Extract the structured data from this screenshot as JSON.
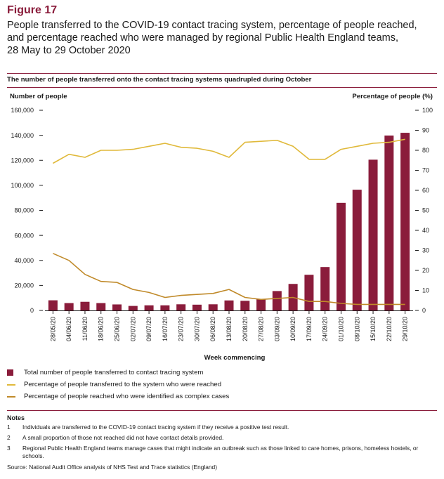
{
  "figure_label": "Figure 17",
  "title_lines": [
    "People transferred to the COVID-19 contact tracing system, percentage of people reached,",
    "and percentage reached who were managed by regional Public Health England teams,",
    "28 May to 29 October 2020"
  ],
  "colors": {
    "accent": "#8a1c3b",
    "bar": "#8a1c3b",
    "reached": "#e0b93a",
    "complex": "#c08a2a",
    "text": "#1a1a1a"
  },
  "chart_data": {
    "type": "bar",
    "title": "The number of people transferred onto the contact tracing systems quadrupled during October",
    "ylabel_left": "Number of people",
    "ylabel_right": "Percentage of people (%)",
    "xlabel": "Week commencing",
    "ylim_left": [
      0,
      160000
    ],
    "ylim_right": [
      0,
      100
    ],
    "left_ticks": [
      "0",
      "20,000",
      "40,000",
      "60,000",
      "80,000",
      "100,000",
      "120,000",
      "140,000",
      "160,000"
    ],
    "right_ticks": [
      "0",
      "10",
      "20",
      "30",
      "40",
      "50",
      "60",
      "70",
      "80",
      "90",
      "100"
    ],
    "categories": [
      "28/05/20",
      "04/06/20",
      "11/06/20",
      "18/06/20",
      "25/06/20",
      "02/07/20",
      "09/07/20",
      "16/07/20",
      "23/07/20",
      "30/07/20",
      "06/08/20",
      "13/08/20",
      "20/08/20",
      "27/08/20",
      "03/09/20",
      "10/09/20",
      "17/09/20",
      "24/09/20",
      "01/10/20",
      "08/10/20",
      "15/10/20",
      "22/10/20",
      "29/10/20"
    ],
    "series": [
      {
        "name": "Total number of people transferred to contact tracing system",
        "type": "bar",
        "axis": "left",
        "values": [
          8100,
          5900,
          6900,
          5900,
          4800,
          3600,
          4100,
          4100,
          4900,
          4600,
          4900,
          8000,
          7700,
          9100,
          15500,
          21200,
          28500,
          34700,
          86000,
          96500,
          120500,
          139800,
          142000
        ]
      },
      {
        "name": "Percentage of people transferred to the system who were reached",
        "type": "line",
        "axis": "right",
        "values": [
          73.5,
          78,
          76.5,
          80,
          80,
          80.5,
          82,
          83.5,
          81.5,
          81,
          79.5,
          76.5,
          84,
          84.5,
          85,
          82,
          75.5,
          75.5,
          80.5,
          82,
          83.5,
          84,
          85.5
        ]
      },
      {
        "name": "Percentage of people reached who were identified as complex cases",
        "type": "line",
        "axis": "right",
        "values": [
          28.5,
          25,
          18,
          14.5,
          14,
          10.5,
          9,
          6.5,
          7.5,
          8,
          8.5,
          10.5,
          6.5,
          5.5,
          6,
          6.5,
          4.5,
          4.5,
          3.5,
          3,
          3,
          3,
          3
        ]
      }
    ]
  },
  "notes": {
    "heading": "Notes",
    "items": [
      {
        "num": "1",
        "text": "Individuals are transferred to the COVID-19 contact tracing system if they receive a positive test result."
      },
      {
        "num": "2",
        "text": "A small proportion of those not reached did not have contact details provided."
      },
      {
        "num": "3",
        "text": "Regional Public Health England teams manage cases that might indicate an outbreak such as those linked to care homes, prisons, homeless hostels, or schools."
      }
    ]
  },
  "source": "Source: National Audit Office analysis of NHS Test and Trace statistics (England)"
}
